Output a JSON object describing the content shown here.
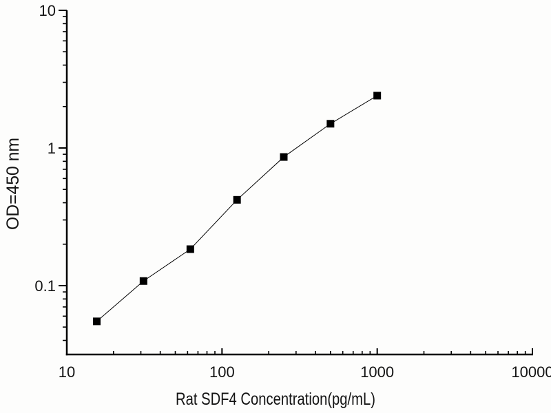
{
  "chart_data": {
    "type": "line",
    "title": "",
    "xlabel": "Rat SDF4 Concentration(pg/mL)",
    "ylabel": "OD=450 nm",
    "x_scale": "log",
    "y_scale": "log",
    "x": [
      15.6,
      31.2,
      62.5,
      125,
      250,
      500,
      1000
    ],
    "y": [
      0.055,
      0.108,
      0.184,
      0.42,
      0.86,
      1.5,
      2.4
    ],
    "xlim": [
      10,
      10000
    ],
    "ylim": [
      0.0316,
      10
    ],
    "x_ticks": {
      "values": [
        10,
        100,
        1000,
        10000
      ],
      "labels": [
        "10",
        "100",
        "1000",
        "10000"
      ]
    },
    "y_ticks": {
      "values": [
        0.1,
        1,
        10
      ],
      "labels": [
        "0.1",
        "1",
        "10"
      ]
    },
    "minor_ticks": true,
    "grid": false,
    "legend": "none",
    "marker": "filled-square",
    "marker_size_px": 11,
    "colors": {
      "line": "#000000",
      "marker": "#000000",
      "axis": "#000000",
      "text": "#141414",
      "background": "#fdfdfc"
    }
  }
}
